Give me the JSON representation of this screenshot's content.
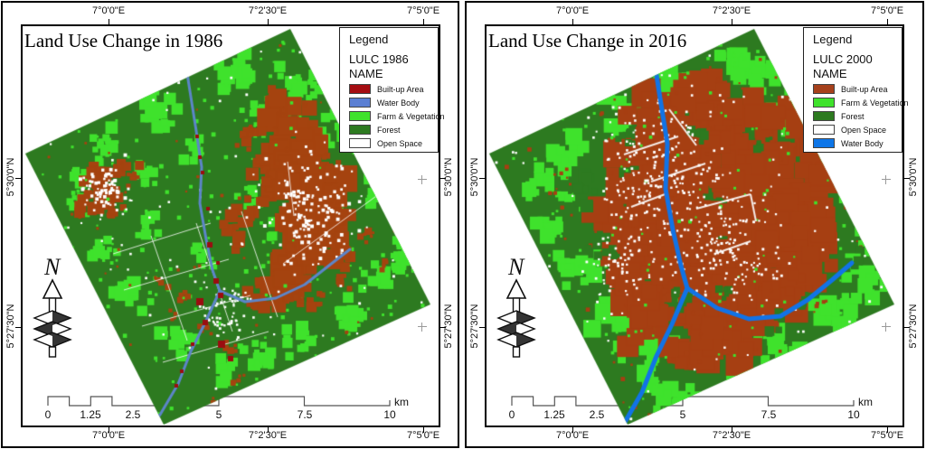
{
  "panels": [
    {
      "variant": "1986",
      "title": "Land Use Change in 1986",
      "axis": {
        "lon": [
          "7°0'0\"E",
          "7°2'30\"E",
          "7°5'0\"E"
        ],
        "lat": [
          "5°30'0\"N",
          "5°27'30\"N"
        ]
      },
      "legend": {
        "title": "Legend",
        "layer": "LULC 1986",
        "field": "NAME",
        "items": [
          {
            "label": "Built-up Area",
            "color": "#a50d12"
          },
          {
            "label": "Water Body",
            "color": "#5b7fd3"
          },
          {
            "label": "Farm & Vegetation",
            "color": "#3fe22c"
          },
          {
            "label": "Forest",
            "color": "#2d7a20"
          },
          {
            "label": "Open Space",
            "color": "#ffffff"
          }
        ]
      },
      "north_label": "N",
      "scalebar": {
        "labels": [
          "0",
          "1.25",
          "2.5",
          "5",
          "7.5",
          "10"
        ],
        "unit": "km"
      },
      "map_colors": {
        "builtup": "#a5430f",
        "farm": "#3fe22c",
        "forest": "#2d7a20",
        "water": "#5c85c8",
        "open": "#ffffff",
        "accent": "#9b0d10"
      }
    },
    {
      "variant": "2016",
      "title": "Land Use Change in 2016",
      "axis": {
        "lon": [
          "7°0'0\"E",
          "7°2'30\"E",
          "7°5'0\"E"
        ],
        "lat": [
          "5°30'0\"N",
          "5°27'30\"N"
        ]
      },
      "legend": {
        "title": "Legend",
        "layer": "LULC 2000",
        "field": "NAME",
        "items": [
          {
            "label": "Built-up Area",
            "color": "#a6411c"
          },
          {
            "label": "Farm & Vegetation",
            "color": "#3fe22c"
          },
          {
            "label": "Forest",
            "color": "#2d7a20"
          },
          {
            "label": "Open Space",
            "color": "#ffffff"
          },
          {
            "label": "Water Body",
            "color": "#0e76e8"
          }
        ]
      },
      "north_label": "N",
      "scalebar": {
        "labels": [
          "0",
          "1.25",
          "2.5",
          "5",
          "7.5",
          "10"
        ],
        "unit": "km"
      },
      "map_colors": {
        "builtup": "#a63f12",
        "farm": "#3fe22c",
        "forest": "#2d7a20",
        "water": "#1173e6",
        "open": "#ffffff",
        "accent": "#9b0d10"
      }
    }
  ]
}
